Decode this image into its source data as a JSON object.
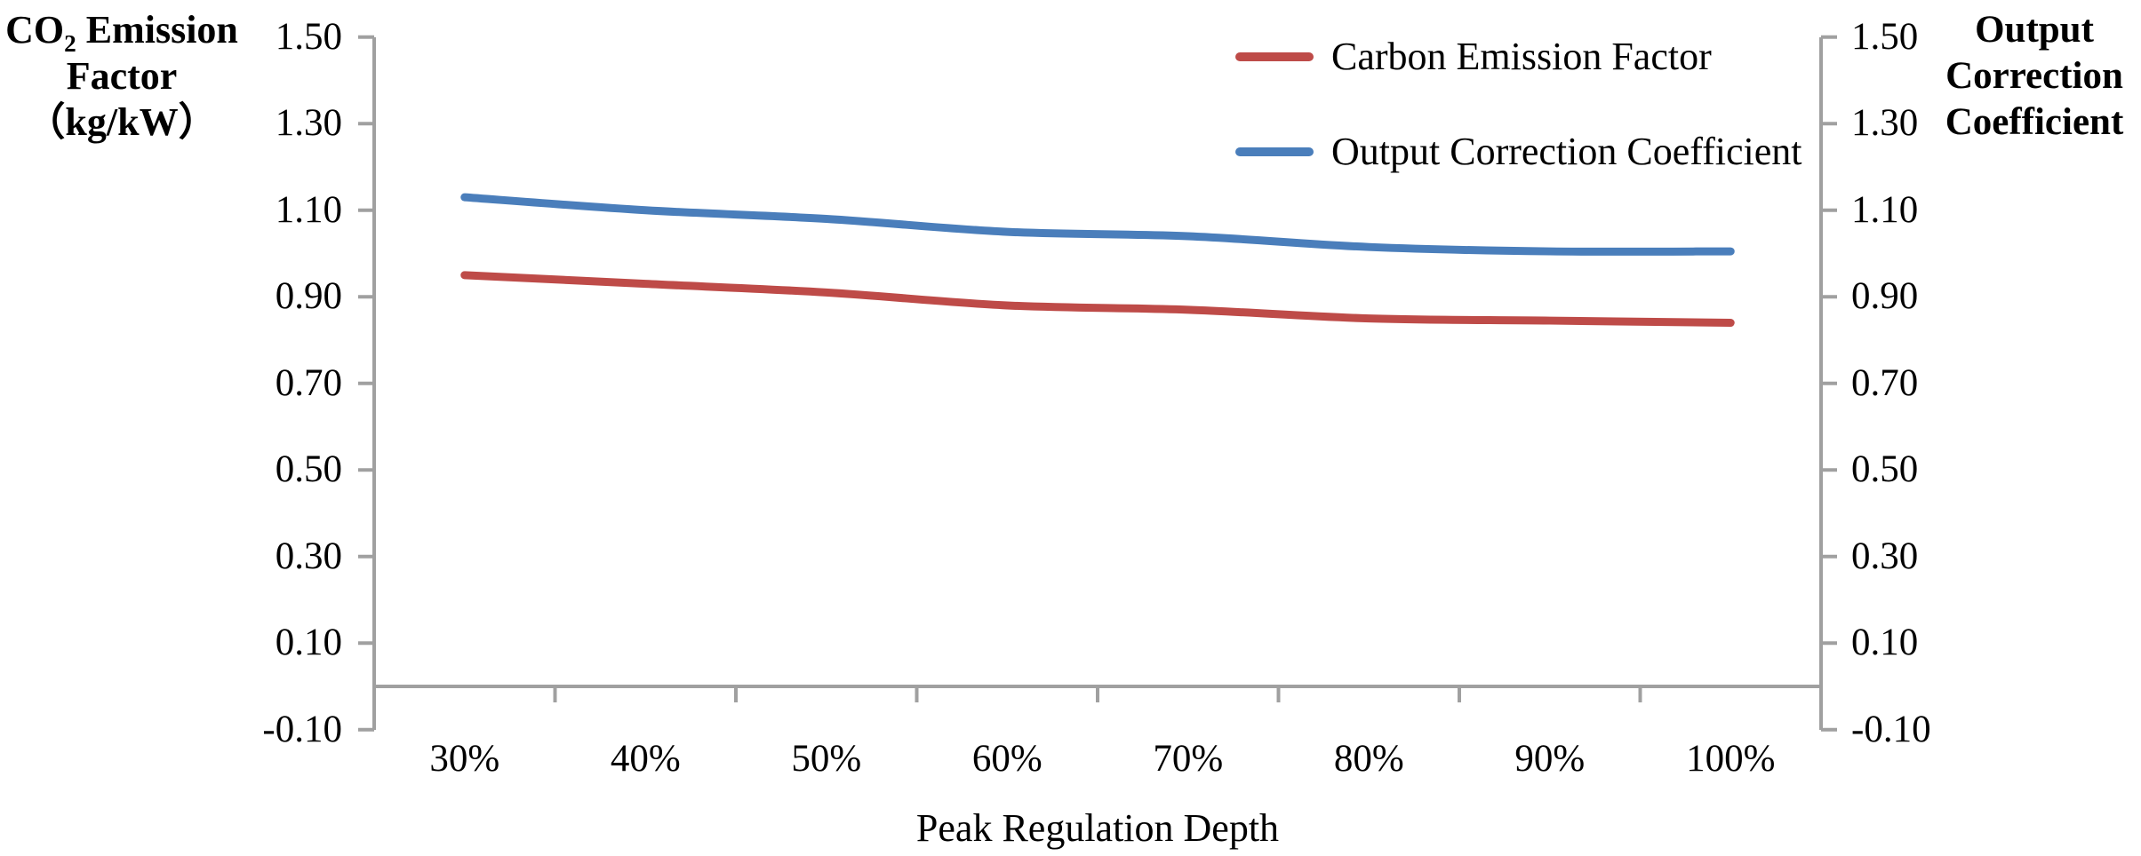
{
  "chart_data": {
    "type": "line",
    "categories": [
      "30%",
      "40%",
      "50%",
      "60%",
      "70%",
      "80%",
      "90%",
      "100%"
    ],
    "series": [
      {
        "name": "Carbon Emission Factor",
        "color": "#BE4B48",
        "axis": "left",
        "values": [
          0.95,
          0.93,
          0.91,
          0.88,
          0.87,
          0.85,
          0.845,
          0.84
        ]
      },
      {
        "name": "Output Correction Coefficient",
        "color": "#4A7EBB",
        "axis": "right",
        "values": [
          1.13,
          1.1,
          1.08,
          1.05,
          1.04,
          1.015,
          1.005,
          1.005
        ]
      }
    ],
    "title": "",
    "xlabel": "Peak Regulation Depth",
    "ylabel_left": "CO₂ Emission Factor （kg/kW）",
    "ylabel_right": "Output Correction Coefficient",
    "ylim": [
      -0.1,
      1.5
    ],
    "ytick_step": 0.2,
    "ytick_labels": [
      "1.50",
      "1.30",
      "1.10",
      "0.90",
      "0.70",
      "0.50",
      "0.30",
      "0.10",
      "-0.10"
    ],
    "ytick_values": [
      1.5,
      1.3,
      1.1,
      0.9,
      0.7,
      0.5,
      0.3,
      0.1,
      -0.1
    ],
    "grid": false,
    "legend_position": "top-right",
    "line_smoothing": true
  },
  "titles": {
    "left_axis": {
      "prefix": "CO",
      "subscript": "2",
      "suffix": " Emission",
      "line2": "Factor",
      "line3": "（kg/kW）"
    },
    "right_axis": {
      "line1": "Output",
      "line2": "Correction",
      "line3": "Coefficient"
    },
    "x_axis": "Peak Regulation Depth"
  },
  "legend": {
    "items": [
      {
        "label": "Carbon Emission Factor",
        "color": "#BE4B48"
      },
      {
        "label": "Output Correction Coefficient",
        "color": "#4A7EBB"
      }
    ]
  },
  "colors": {
    "axis": "#A0A0A0",
    "text": "#000000",
    "series_red": "#BE4B48",
    "series_blue": "#4A7EBB"
  }
}
